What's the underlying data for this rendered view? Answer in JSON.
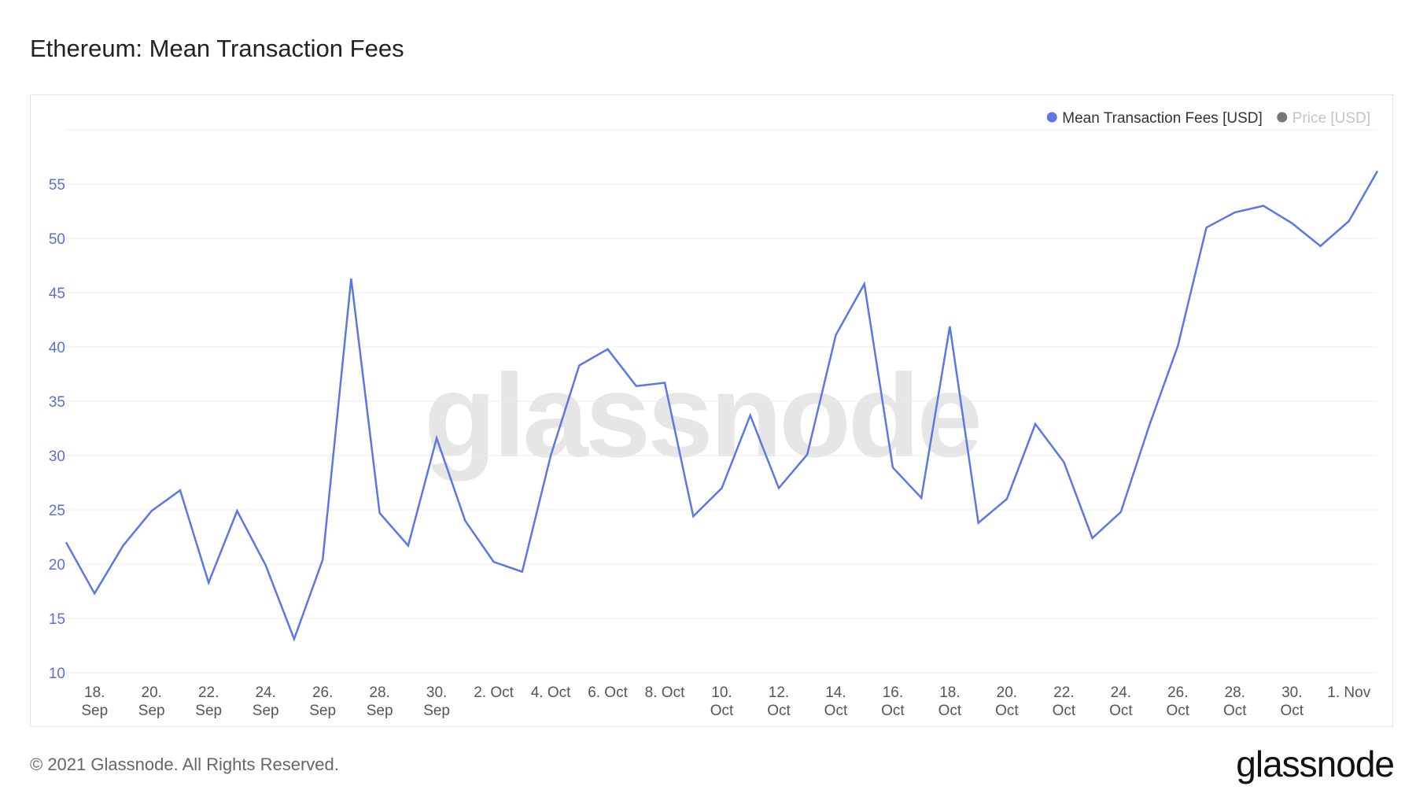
{
  "title": "Ethereum: Mean Transaction Fees",
  "footer": "© 2021 Glassnode. All Rights Reserved.",
  "logo": "glassnode",
  "watermark": "glassnode",
  "legend": [
    {
      "label": "Mean Transaction Fees [USD]",
      "color": "#5b77e6",
      "active": true
    },
    {
      "label": "Price [USD]",
      "color": "#777777",
      "active": false
    }
  ],
  "chart_data": {
    "type": "line",
    "title": "Ethereum: Mean Transaction Fees",
    "ylim": [
      10,
      60
    ],
    "yticks": [
      10,
      15,
      20,
      25,
      30,
      35,
      40,
      45,
      50,
      55
    ],
    "grid": true,
    "legend_position": "top-right",
    "x": [
      "2021-09-17",
      "2021-09-18",
      "2021-09-19",
      "2021-09-20",
      "2021-09-21",
      "2021-09-22",
      "2021-09-23",
      "2021-09-24",
      "2021-09-25",
      "2021-09-26",
      "2021-09-27",
      "2021-09-28",
      "2021-09-29",
      "2021-09-30",
      "2021-10-01",
      "2021-10-02",
      "2021-10-03",
      "2021-10-04",
      "2021-10-05",
      "2021-10-06",
      "2021-10-07",
      "2021-10-08",
      "2021-10-09",
      "2021-10-10",
      "2021-10-11",
      "2021-10-12",
      "2021-10-13",
      "2021-10-14",
      "2021-10-15",
      "2021-10-16",
      "2021-10-17",
      "2021-10-18",
      "2021-10-19",
      "2021-10-20",
      "2021-10-21",
      "2021-10-22",
      "2021-10-23",
      "2021-10-24",
      "2021-10-25",
      "2021-10-26",
      "2021-10-27",
      "2021-10-28",
      "2021-10-29",
      "2021-10-30",
      "2021-10-31",
      "2021-11-01",
      "2021-11-02"
    ],
    "xticks": [
      {
        "date": "2021-09-18",
        "line1": "18.",
        "line2": "Sep"
      },
      {
        "date": "2021-09-20",
        "line1": "20.",
        "line2": "Sep"
      },
      {
        "date": "2021-09-22",
        "line1": "22.",
        "line2": "Sep"
      },
      {
        "date": "2021-09-24",
        "line1": "24.",
        "line2": "Sep"
      },
      {
        "date": "2021-09-26",
        "line1": "26.",
        "line2": "Sep"
      },
      {
        "date": "2021-09-28",
        "line1": "28.",
        "line2": "Sep"
      },
      {
        "date": "2021-09-30",
        "line1": "30.",
        "line2": "Sep"
      },
      {
        "date": "2021-10-02",
        "line1": "2. Oct",
        "line2": ""
      },
      {
        "date": "2021-10-04",
        "line1": "4. Oct",
        "line2": ""
      },
      {
        "date": "2021-10-06",
        "line1": "6. Oct",
        "line2": ""
      },
      {
        "date": "2021-10-08",
        "line1": "8. Oct",
        "line2": ""
      },
      {
        "date": "2021-10-10",
        "line1": "10.",
        "line2": "Oct"
      },
      {
        "date": "2021-10-12",
        "line1": "12.",
        "line2": "Oct"
      },
      {
        "date": "2021-10-14",
        "line1": "14.",
        "line2": "Oct"
      },
      {
        "date": "2021-10-16",
        "line1": "16.",
        "line2": "Oct"
      },
      {
        "date": "2021-10-18",
        "line1": "18.",
        "line2": "Oct"
      },
      {
        "date": "2021-10-20",
        "line1": "20.",
        "line2": "Oct"
      },
      {
        "date": "2021-10-22",
        "line1": "22.",
        "line2": "Oct"
      },
      {
        "date": "2021-10-24",
        "line1": "24.",
        "line2": "Oct"
      },
      {
        "date": "2021-10-26",
        "line1": "26.",
        "line2": "Oct"
      },
      {
        "date": "2021-10-28",
        "line1": "28.",
        "line2": "Oct"
      },
      {
        "date": "2021-10-30",
        "line1": "30.",
        "line2": "Oct"
      },
      {
        "date": "2021-11-01",
        "line1": "1. Nov",
        "line2": ""
      }
    ],
    "series": [
      {
        "name": "Mean Transaction Fees [USD]",
        "color": "#5b77e6",
        "values": [
          22.0,
          17.3,
          21.7,
          24.9,
          26.8,
          18.3,
          24.9,
          19.9,
          13.1,
          20.4,
          46.3,
          24.7,
          21.7,
          31.6,
          24.0,
          20.2,
          19.3,
          30.0,
          38.3,
          39.8,
          36.4,
          36.7,
          24.4,
          27.0,
          33.7,
          27.0,
          30.1,
          41.1,
          45.8,
          28.9,
          26.1,
          41.9,
          23.8,
          26.0,
          32.9,
          29.4,
          22.4,
          24.8,
          32.8,
          40.1,
          51.0,
          52.4,
          53.0,
          51.4,
          49.3,
          51.6,
          56.2
        ]
      }
    ]
  }
}
